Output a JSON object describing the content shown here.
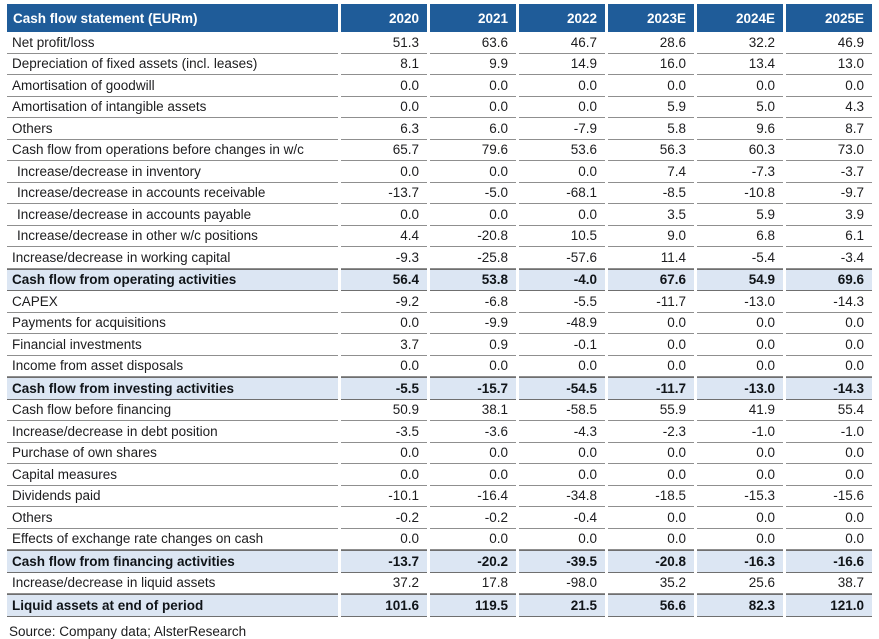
{
  "colors": {
    "header_bg": "#1f5c99",
    "header_text": "#ffffff",
    "highlight_bg": "#dce6f3",
    "row_border": "#8f8f8f",
    "total_border": "#6f6f6f",
    "body_text": "#1c1c1e"
  },
  "source": "Source: Company data; AlsterResearch",
  "table": {
    "title": "Cash flow statement (EURm)",
    "years": [
      "2020",
      "2021",
      "2022",
      "2023E",
      "2024E",
      "2025E"
    ],
    "rows": [
      {
        "label": "Net profit/loss",
        "style": "normal",
        "indent": false,
        "values": [
          "51.3",
          "63.6",
          "46.7",
          "28.6",
          "32.2",
          "46.9"
        ]
      },
      {
        "label": "Depreciation of fixed assets (incl. leases)",
        "style": "normal",
        "indent": false,
        "values": [
          "8.1",
          "9.9",
          "14.9",
          "16.0",
          "13.4",
          "13.0"
        ]
      },
      {
        "label": "Amortisation of goodwill",
        "style": "normal",
        "indent": false,
        "values": [
          "0.0",
          "0.0",
          "0.0",
          "0.0",
          "0.0",
          "0.0"
        ]
      },
      {
        "label": "Amortisation of intangible assets",
        "style": "normal",
        "indent": false,
        "values": [
          "0.0",
          "0.0",
          "0.0",
          "5.9",
          "5.0",
          "4.3"
        ]
      },
      {
        "label": "Others",
        "style": "normal",
        "indent": false,
        "values": [
          "6.3",
          "6.0",
          "-7.9",
          "5.8",
          "9.6",
          "8.7"
        ]
      },
      {
        "label": "Cash flow from operations before changes in w/c",
        "style": "normal",
        "indent": false,
        "values": [
          "65.7",
          "79.6",
          "53.6",
          "56.3",
          "60.3",
          "73.0"
        ]
      },
      {
        "label": "Increase/decrease in inventory",
        "style": "normal",
        "indent": true,
        "values": [
          "0.0",
          "0.0",
          "0.0",
          "7.4",
          "-7.3",
          "-3.7"
        ]
      },
      {
        "label": "Increase/decrease in accounts receivable",
        "style": "normal",
        "indent": true,
        "values": [
          "-13.7",
          "-5.0",
          "-68.1",
          "-8.5",
          "-10.8",
          "-9.7"
        ]
      },
      {
        "label": "Increase/decrease in accounts payable",
        "style": "normal",
        "indent": true,
        "values": [
          "0.0",
          "0.0",
          "0.0",
          "3.5",
          "5.9",
          "3.9"
        ]
      },
      {
        "label": "Increase/decrease in other w/c positions",
        "style": "normal",
        "indent": true,
        "values": [
          "4.4",
          "-20.8",
          "10.5",
          "9.0",
          "6.8",
          "6.1"
        ]
      },
      {
        "label": "Increase/decrease in working capital",
        "style": "normal",
        "indent": false,
        "values": [
          "-9.3",
          "-25.8",
          "-57.6",
          "11.4",
          "-5.4",
          "-3.4"
        ]
      },
      {
        "label": "Cash flow from operating activities",
        "style": "total",
        "indent": false,
        "values": [
          "56.4",
          "53.8",
          "-4.0",
          "67.6",
          "54.9",
          "69.6"
        ]
      },
      {
        "label": "CAPEX",
        "style": "normal",
        "indent": false,
        "values": [
          "-9.2",
          "-6.8",
          "-5.5",
          "-11.7",
          "-13.0",
          "-14.3"
        ]
      },
      {
        "label": "Payments for acquisitions",
        "style": "normal",
        "indent": false,
        "values": [
          "0.0",
          "-9.9",
          "-48.9",
          "0.0",
          "0.0",
          "0.0"
        ]
      },
      {
        "label": "Financial investments",
        "style": "normal",
        "indent": false,
        "values": [
          "3.7",
          "0.9",
          "-0.1",
          "0.0",
          "0.0",
          "0.0"
        ]
      },
      {
        "label": "Income from asset disposals",
        "style": "normal",
        "indent": false,
        "values": [
          "0.0",
          "0.0",
          "0.0",
          "0.0",
          "0.0",
          "0.0"
        ]
      },
      {
        "label": "Cash flow from investing activities",
        "style": "total",
        "indent": false,
        "values": [
          "-5.5",
          "-15.7",
          "-54.5",
          "-11.7",
          "-13.0",
          "-14.3"
        ]
      },
      {
        "label": "Cash flow before financing",
        "style": "normal",
        "indent": false,
        "values": [
          "50.9",
          "38.1",
          "-58.5",
          "55.9",
          "41.9",
          "55.4"
        ]
      },
      {
        "label": "Increase/decrease in debt position",
        "style": "normal",
        "indent": false,
        "values": [
          "-3.5",
          "-3.6",
          "-4.3",
          "-2.3",
          "-1.0",
          "-1.0"
        ]
      },
      {
        "label": "Purchase of own shares",
        "style": "normal",
        "indent": false,
        "values": [
          "0.0",
          "0.0",
          "0.0",
          "0.0",
          "0.0",
          "0.0"
        ]
      },
      {
        "label": "Capital measures",
        "style": "normal",
        "indent": false,
        "values": [
          "0.0",
          "0.0",
          "0.0",
          "0.0",
          "0.0",
          "0.0"
        ]
      },
      {
        "label": "Dividends paid",
        "style": "normal",
        "indent": false,
        "values": [
          "-10.1",
          "-16.4",
          "-34.8",
          "-18.5",
          "-15.3",
          "-15.6"
        ]
      },
      {
        "label": "Others",
        "style": "normal",
        "indent": false,
        "values": [
          "-0.2",
          "-0.2",
          "-0.4",
          "0.0",
          "0.0",
          "0.0"
        ]
      },
      {
        "label": "Effects of exchange rate changes on cash",
        "style": "normal",
        "indent": false,
        "values": [
          "0.0",
          "0.0",
          "0.0",
          "0.0",
          "0.0",
          "0.0"
        ]
      },
      {
        "label": "Cash flow from financing activities",
        "style": "total",
        "indent": false,
        "values": [
          "-13.7",
          "-20.2",
          "-39.5",
          "-20.8",
          "-16.3",
          "-16.6"
        ]
      },
      {
        "label": "Increase/decrease in liquid assets",
        "style": "normal",
        "indent": false,
        "values": [
          "37.2",
          "17.8",
          "-98.0",
          "35.2",
          "25.6",
          "38.7"
        ]
      },
      {
        "label": "Liquid assets at end of period",
        "style": "total",
        "indent": false,
        "values": [
          "101.6",
          "119.5",
          "21.5",
          "56.6",
          "82.3",
          "121.0"
        ]
      }
    ]
  }
}
